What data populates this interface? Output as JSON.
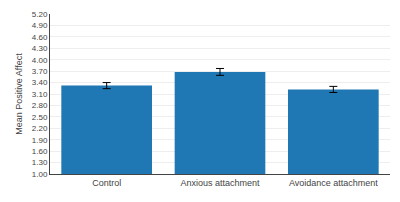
{
  "chart_data": {
    "type": "bar",
    "categories": [
      "Control",
      "Anxious attachment",
      "Avoidance attachment"
    ],
    "values": [
      3.32,
      3.68,
      3.22
    ],
    "errors": [
      0.08,
      0.09,
      0.08
    ],
    "ylabel": "Mean Positive Affect",
    "ylim": [
      1.0,
      5.2
    ],
    "yticks": [
      {
        "value": 1.0,
        "label": "1.00"
      },
      {
        "value": 1.3,
        "label": "1.30"
      },
      {
        "value": 1.6,
        "label": "1.60"
      },
      {
        "value": 1.9,
        "label": "1.90"
      },
      {
        "value": 2.2,
        "label": "2.20"
      },
      {
        "value": 2.5,
        "label": "2.50"
      },
      {
        "value": 2.8,
        "label": "2.80"
      },
      {
        "value": 3.1,
        "label": "3.10"
      },
      {
        "value": 3.4,
        "label": "3.40"
      },
      {
        "value": 3.7,
        "label": "3.70"
      },
      {
        "value": 4.0,
        "label": "4.00"
      },
      {
        "value": 4.3,
        "label": "4.30"
      },
      {
        "value": 4.6,
        "label": "4.60"
      },
      {
        "value": 4.9,
        "label": "4.90"
      },
      {
        "value": 5.2,
        "label": "5.20"
      }
    ],
    "grid": true
  }
}
